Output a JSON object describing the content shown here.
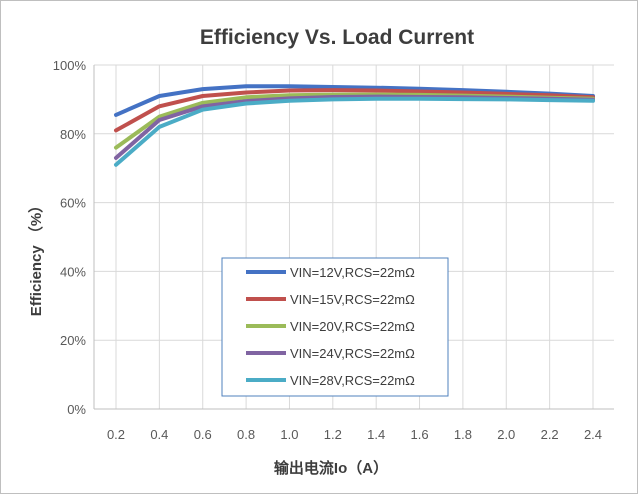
{
  "chart_data": {
    "type": "line",
    "title": "Efficiency Vs. Load Current",
    "xlabel": "输出电流Io（A）",
    "ylabel": "Efficiency （%）",
    "x_ticks": [
      "0.2",
      "0.4",
      "0.6",
      "0.8",
      "1.0",
      "1.2",
      "1.4",
      "1.6",
      "1.8",
      "2.0",
      "2.2",
      "2.4"
    ],
    "y_ticks": [
      "0%",
      "20%",
      "40%",
      "60%",
      "80%",
      "100%"
    ],
    "xlim": [
      0.2,
      2.4
    ],
    "ylim": [
      0,
      100
    ],
    "grid": true,
    "legend_position": "lower-center",
    "series": [
      {
        "name": "VIN=12V,RCS=22mΩ",
        "color": "#4472C4",
        "x": [
          0.2,
          0.4,
          0.6,
          0.8,
          1.0,
          1.2,
          1.4,
          1.6,
          1.8,
          2.0,
          2.2,
          2.4
        ],
        "values": [
          85.5,
          91,
          93,
          93.8,
          93.8,
          93.6,
          93.4,
          93.1,
          92.7,
          92.2,
          91.7,
          91
        ]
      },
      {
        "name": "VIN=15V,RCS=22mΩ",
        "color": "#C0504D",
        "x": [
          0.2,
          0.4,
          0.6,
          0.8,
          1.0,
          1.2,
          1.4,
          1.6,
          1.8,
          2.0,
          2.2,
          2.4
        ],
        "values": [
          81,
          88,
          91,
          92,
          92.6,
          92.7,
          92.6,
          92.3,
          92,
          91.6,
          91.2,
          90.6
        ]
      },
      {
        "name": "VIN=20V,RCS=22mΩ",
        "color": "#9BBB59",
        "x": [
          0.2,
          0.4,
          0.6,
          0.8,
          1.0,
          1.2,
          1.4,
          1.6,
          1.8,
          2.0,
          2.2,
          2.4
        ],
        "values": [
          76,
          85,
          89,
          90.6,
          91.2,
          91.4,
          91.4,
          91.3,
          91.1,
          90.8,
          90.5,
          90.2
        ]
      },
      {
        "name": "VIN=24V,RCS=22mΩ",
        "color": "#8064A2",
        "x": [
          0.2,
          0.4,
          0.6,
          0.8,
          1.0,
          1.2,
          1.4,
          1.6,
          1.8,
          2.0,
          2.2,
          2.4
        ],
        "values": [
          73,
          84,
          88,
          89.5,
          90.3,
          90.7,
          90.8,
          90.7,
          90.6,
          90.4,
          90.2,
          89.9
        ]
      },
      {
        "name": "VIN=28V,RCS=22mΩ",
        "color": "#4BACC6",
        "x": [
          0.2,
          0.4,
          0.6,
          0.8,
          1.0,
          1.2,
          1.4,
          1.6,
          1.8,
          2.0,
          2.2,
          2.4
        ],
        "values": [
          71,
          82,
          87,
          88.8,
          89.6,
          90,
          90.2,
          90.2,
          90.1,
          90,
          89.8,
          89.6
        ]
      }
    ]
  }
}
